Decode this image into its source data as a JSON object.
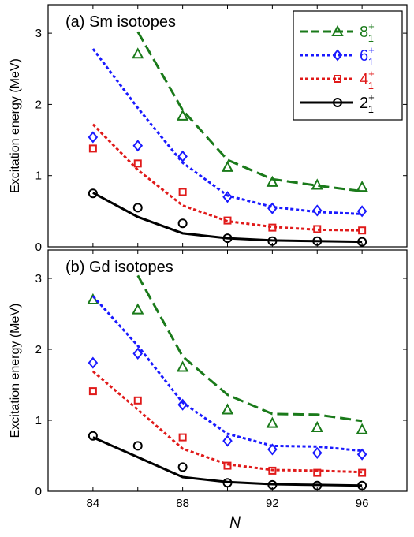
{
  "xlabel": "N",
  "chart_data": [
    {
      "type": "line",
      "title": "(a) Sm isotopes",
      "xlabel": "N",
      "ylabel": "Excitation energy (MeV)",
      "xlim": [
        82,
        98
      ],
      "ylim": [
        0,
        3.4
      ],
      "xticks": [
        84,
        86,
        88,
        90,
        92,
        94,
        96
      ],
      "xticklabels": [
        "",
        "",
        "",
        "",
        "",
        "",
        ""
      ],
      "yticks": [
        0,
        1,
        2,
        3
      ],
      "legend_position": "top-right",
      "series": [
        {
          "name": "8+1",
          "label_main": "8",
          "label_sup": "+",
          "label_sub": "1",
          "color": "#1a7a1a",
          "line_style": "dashed",
          "marker": "triangle",
          "theory": {
            "x": [
              86,
              88,
              90,
              92,
              94,
              96
            ],
            "y": [
              3.02,
              1.92,
              1.22,
              0.95,
              0.86,
              0.78
            ]
          },
          "experiment": {
            "x": [
              86,
              88,
              90,
              92,
              94,
              96
            ],
            "y": [
              2.71,
              1.84,
              1.12,
              0.91,
              0.87,
              0.84
            ]
          }
        },
        {
          "name": "6+1",
          "label_main": "6",
          "label_sup": "+",
          "label_sub": "1",
          "color": "#1a1aff",
          "line_style": "dotted",
          "marker": "diamond",
          "theory": {
            "x": [
              84,
              86,
              88,
              90,
              92,
              94,
              96
            ],
            "y": [
              2.78,
              1.95,
              1.18,
              0.72,
              0.56,
              0.49,
              0.46
            ]
          },
          "experiment": {
            "x": [
              84,
              86,
              88,
              90,
              92,
              94,
              96
            ],
            "y": [
              1.54,
              1.42,
              1.27,
              0.7,
              0.54,
              0.51,
              0.5
            ]
          }
        },
        {
          "name": "4+1",
          "label_main": "4",
          "label_sup": "+",
          "label_sub": "1",
          "color": "#e01a1a",
          "line_style": "dotted",
          "marker": "square",
          "theory": {
            "x": [
              84,
              86,
              88,
              90,
              92,
              94,
              96
            ],
            "y": [
              1.72,
              1.08,
              0.58,
              0.36,
              0.28,
              0.24,
              0.23
            ]
          },
          "experiment": {
            "x": [
              84,
              86,
              88,
              90,
              92,
              94,
              96
            ],
            "y": [
              1.38,
              1.17,
              0.77,
              0.37,
              0.27,
              0.25,
              0.23
            ]
          }
        },
        {
          "name": "2+1",
          "label_main": "2",
          "label_sup": "+",
          "label_sub": "1",
          "color": "#000000",
          "line_style": "solid",
          "marker": "circle",
          "theory": {
            "x": [
              84,
              86,
              88,
              90,
              92,
              94,
              96
            ],
            "y": [
              0.76,
              0.42,
              0.19,
              0.12,
              0.09,
              0.08,
              0.07
            ]
          },
          "experiment": {
            "x": [
              84,
              86,
              88,
              90,
              92,
              94,
              96
            ],
            "y": [
              0.75,
              0.55,
              0.33,
              0.12,
              0.08,
              0.08,
              0.07
            ]
          }
        }
      ]
    },
    {
      "type": "line",
      "title": "(b) Gd isotopes",
      "xlabel": "N",
      "ylabel": "Excitation energy (MeV)",
      "xlim": [
        82,
        98
      ],
      "ylim": [
        0,
        3.4
      ],
      "xticks": [
        84,
        86,
        88,
        90,
        92,
        94,
        96
      ],
      "xticklabels": [
        "84",
        "",
        "88",
        "",
        "92",
        "",
        "96"
      ],
      "yticks": [
        0,
        1,
        2,
        3
      ],
      "series": [
        {
          "name": "8+1",
          "color": "#1a7a1a",
          "line_style": "dashed",
          "marker": "triangle",
          "theory": {
            "x": [
              86,
              88,
              90,
              92,
              94,
              96
            ],
            "y": [
              3.04,
              1.9,
              1.36,
              1.09,
              1.08,
              0.99
            ]
          },
          "experiment": {
            "x": [
              84,
              86,
              88,
              90,
              92,
              94,
              96
            ],
            "y": [
              2.7,
              2.56,
              1.75,
              1.15,
              0.96,
              0.9,
              0.87
            ]
          }
        },
        {
          "name": "6+1",
          "color": "#1a1aff",
          "line_style": "dotted",
          "marker": "diamond",
          "theory": {
            "x": [
              84,
              86,
              88,
              90,
              92,
              94,
              96
            ],
            "y": [
              2.75,
              2.05,
              1.25,
              0.81,
              0.64,
              0.63,
              0.57
            ]
          },
          "experiment": {
            "x": [
              84,
              86,
              88,
              90,
              92,
              94,
              96
            ],
            "y": [
              1.81,
              1.94,
              1.22,
              0.71,
              0.59,
              0.54,
              0.52
            ]
          }
        },
        {
          "name": "4+1",
          "color": "#e01a1a",
          "line_style": "dotted",
          "marker": "square",
          "theory": {
            "x": [
              84,
              86,
              88,
              90,
              92,
              94,
              96
            ],
            "y": [
              1.69,
              1.15,
              0.6,
              0.38,
              0.3,
              0.29,
              0.27
            ]
          },
          "experiment": {
            "x": [
              84,
              86,
              88,
              90,
              92,
              94,
              96
            ],
            "y": [
              1.41,
              1.28,
              0.76,
              0.36,
              0.29,
              0.26,
              0.26
            ]
          }
        },
        {
          "name": "2+1",
          "color": "#000000",
          "line_style": "solid",
          "marker": "circle",
          "theory": {
            "x": [
              84,
              86,
              88,
              90,
              92,
              94,
              96
            ],
            "y": [
              0.76,
              0.48,
              0.2,
              0.13,
              0.1,
              0.09,
              0.08
            ]
          },
          "experiment": {
            "x": [
              84,
              86,
              88,
              90,
              92,
              94,
              96
            ],
            "y": [
              0.78,
              0.64,
              0.34,
              0.12,
              0.09,
              0.08,
              0.08
            ]
          }
        }
      ]
    }
  ]
}
